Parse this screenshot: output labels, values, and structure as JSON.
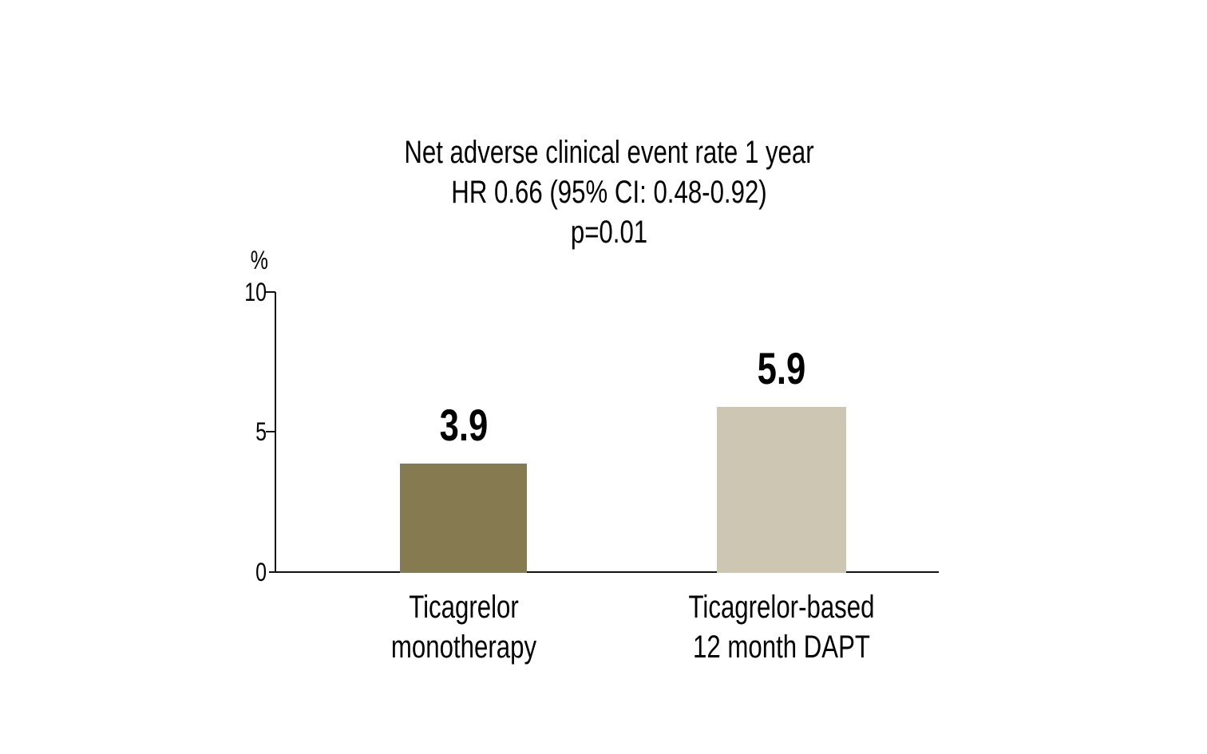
{
  "figure": {
    "background": "#ffffff",
    "text_color": "#000000",
    "axis_color": "#111111",
    "title": {
      "line1": "Net adverse clinical event rate 1 year",
      "line2": "HR 0.66 (95% CI: 0.48-0.92)",
      "line3": "p=0.01"
    },
    "y_axis": {
      "unit": "%",
      "ticks": [
        {
          "label": "10",
          "value": 10
        },
        {
          "label": "5",
          "value": 5
        },
        {
          "label": "0",
          "value": 0
        }
      ]
    },
    "bars": [
      {
        "value_label": "3.9",
        "value": 3.9,
        "color": "#867a51",
        "label_line1": "Ticagrelor",
        "label_line2": "monotherapy"
      },
      {
        "value_label": "5.9",
        "value": 5.9,
        "color": "#cdc6b3",
        "label_line1": "Ticagrelor-based",
        "label_line2": "12 month DAPT"
      }
    ]
  },
  "chart_data": {
    "type": "bar",
    "title": "Net adverse clinical event rate 1 year",
    "subtitle_lines": [
      "HR 0.66 (95% CI: 0.48-0.92)",
      "p=0.01"
    ],
    "categories": [
      "Ticagrelor monotherapy",
      "Ticagrelor-based 12 month DAPT"
    ],
    "values": [
      3.9,
      5.9
    ],
    "value_labels": [
      "3.9",
      "5.9"
    ],
    "bar_colors": [
      "#867a51",
      "#cdc6b3"
    ],
    "xlabel": "",
    "ylabel": "%",
    "ylim": [
      0,
      10
    ],
    "yticks": [
      0,
      5,
      10
    ],
    "grid": false,
    "legend": false
  }
}
